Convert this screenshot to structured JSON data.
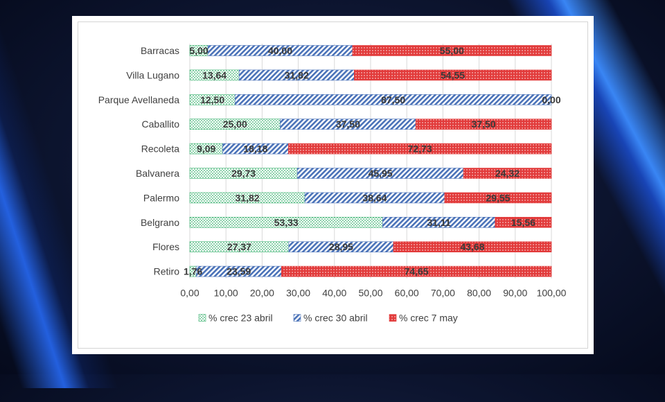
{
  "chart_data": {
    "type": "bar",
    "orientation": "horizontal",
    "stacked": "100%",
    "categories": [
      "Barracas",
      "Villa Lugano",
      "Parque Avellaneda",
      "Caballito",
      "Recoleta",
      "Balvanera",
      "Palermo",
      "Belgrano",
      "Flores",
      "Retiro"
    ],
    "series": [
      {
        "name": "% crec 23 abril",
        "color": "#3cb371",
        "pattern": "dots",
        "values": [
          5.0,
          13.64,
          12.5,
          25.0,
          9.09,
          29.73,
          31.82,
          53.33,
          27.37,
          1.76
        ],
        "labels": [
          "5,00",
          "13,64",
          "12,50",
          "25,00",
          "9,09",
          "29,73",
          "31,82",
          "53,33",
          "27,37",
          "1,76"
        ]
      },
      {
        "name": "% crec 30 abril",
        "color": "#4a72b8",
        "pattern": "diagonal",
        "values": [
          40.0,
          31.82,
          87.5,
          37.5,
          18.18,
          45.95,
          38.64,
          31.11,
          28.95,
          23.59
        ],
        "labels": [
          "40,00",
          "31,82",
          "87,50",
          "37,50",
          "18,18",
          "45,95",
          "38,64",
          "31,11",
          "28,95",
          "23,59"
        ]
      },
      {
        "name": "% crec 7 may",
        "color": "#e23b3b",
        "pattern": "cross",
        "values": [
          55.0,
          54.55,
          0.0,
          37.5,
          72.73,
          24.32,
          29.55,
          15.56,
          43.68,
          74.65
        ],
        "labels": [
          "55,00",
          "54,55",
          "0,00",
          "37,50",
          "72,73",
          "24,32",
          "29,55",
          "15,56",
          "43,68",
          "74,65"
        ]
      }
    ],
    "xlim": [
      0,
      100
    ],
    "xticks": [
      "0,00",
      "10,00",
      "20,00",
      "30,00",
      "40,00",
      "50,00",
      "60,00",
      "70,00",
      "80,00",
      "90,00",
      "100,00"
    ],
    "grid": "vertical",
    "legend": "bottom",
    "title": "",
    "xlabel": "",
    "ylabel": ""
  }
}
